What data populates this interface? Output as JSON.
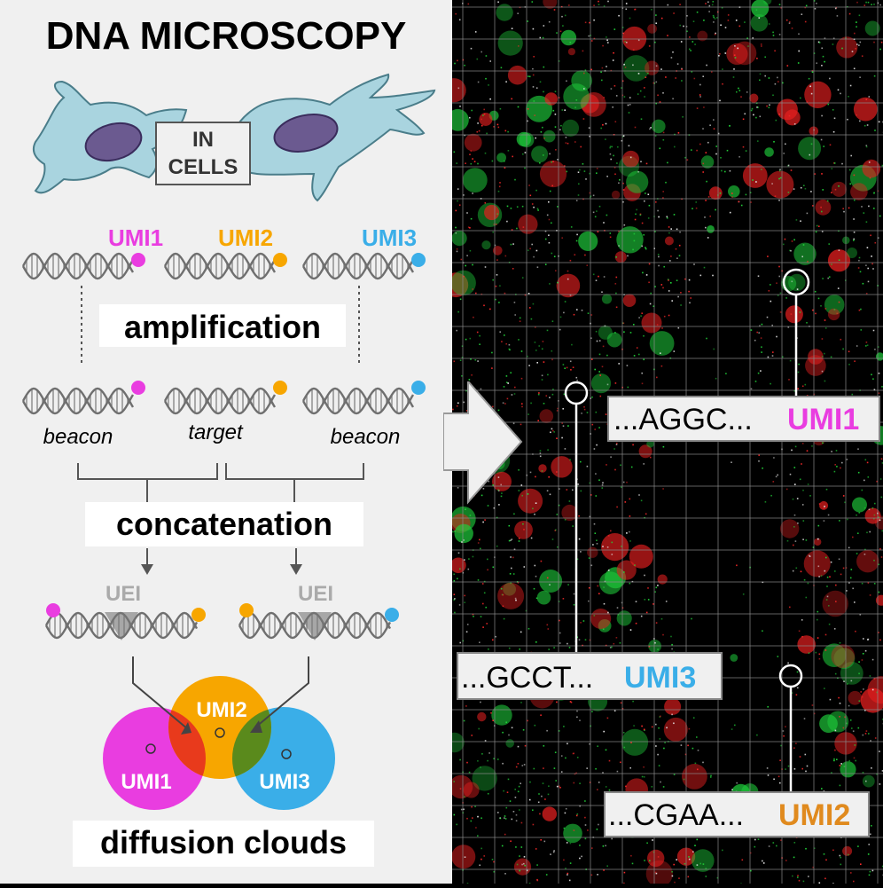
{
  "title": "DNA MICROSCOPY",
  "cells_label": {
    "line1": "IN",
    "line2": "CELLS"
  },
  "umis": [
    {
      "label": "UMI1",
      "color": "#e93de0"
    },
    {
      "label": "UMI2",
      "color": "#f7a600"
    },
    {
      "label": "UMI3",
      "color": "#3aaee8"
    }
  ],
  "steps": {
    "amplification": "amplification",
    "concatenation": "concatenation",
    "diffusion": "diffusion clouds"
  },
  "roles": {
    "left": "beacon",
    "middle": "target",
    "right": "beacon"
  },
  "uei_label": "UEI",
  "clouds": [
    {
      "label": "UMI1",
      "color": "#e93de0"
    },
    {
      "label": "UMI2",
      "color": "#f7a600"
    },
    {
      "label": "UMI3",
      "color": "#3aaee8"
    }
  ],
  "reads": [
    {
      "seq": "...AGGC...",
      "umi": "UMI1",
      "color": "#e93de0"
    },
    {
      "seq": "...GCCT...",
      "umi": "UMI3",
      "color": "#3aaee8"
    },
    {
      "seq": "...CGAA...",
      "umi": "UMI2",
      "color": "#e08a1e"
    }
  ],
  "colors": {
    "panel_bg": "#f0f0f0",
    "cell_fill": "#a9d4df",
    "nucleus_fill": "#6b5a90",
    "dna": "#6f6f6f",
    "overlap_12": "#e83a1c",
    "overlap_23": "#5a8a1c",
    "image_bg": "#000000",
    "signal_green": "#22d43a",
    "signal_red": "#ff2222",
    "grid": "#8a8a8a"
  }
}
